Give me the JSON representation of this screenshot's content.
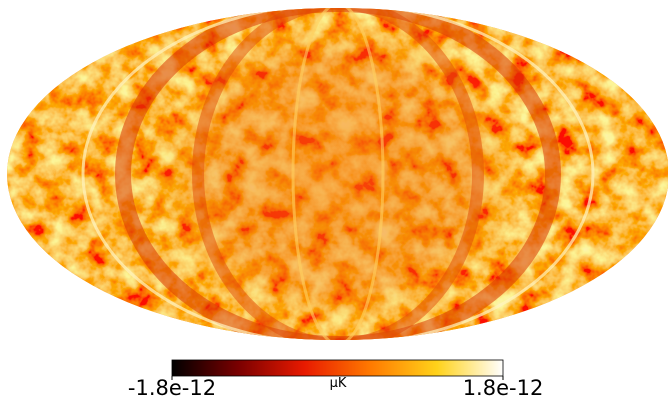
{
  "map": {
    "projection": "mollweide",
    "unit": "μK",
    "colorbar": {
      "min": -1.8e-12,
      "max": 1.8e-12,
      "colormap": [
        "#000000",
        "#7a0000",
        "#e81a00",
        "#ff7a00",
        "#ffd21a",
        "#ffffff"
      ]
    }
  }
}
